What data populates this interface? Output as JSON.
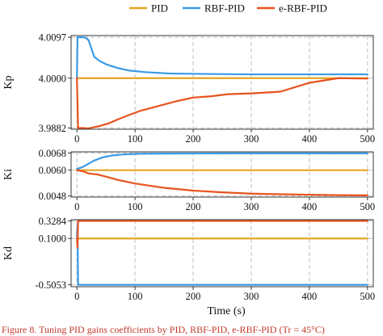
{
  "legend": [
    {
      "name": "PID",
      "color": "#E5A523"
    },
    {
      "name": "RBF-PID",
      "color": "#3A9BE8"
    },
    {
      "name": "e-RBF-PID",
      "color": "#E8531E"
    }
  ],
  "xlabel": "Time (s)",
  "caption_fragment": "Figure 8. Tuning PID gains coefficients by PID, RBF-PID, e-RBF-PID (Tr = 45°C)",
  "chart_data": [
    {
      "type": "line",
      "ylabel": "Kp",
      "xlim": [
        -10,
        510
      ],
      "xticks": [
        0,
        100,
        200,
        300,
        400,
        500
      ],
      "ylim": [
        3.9879,
        4.0101
      ],
      "yticks": [
        "4.0097",
        "4.0000",
        "3.9882"
      ],
      "grid": true,
      "series": [
        {
          "name": "PID",
          "color": "#E5A523",
          "points": [
            [
              0,
              4.0
            ],
            [
              500,
              4.0
            ]
          ]
        },
        {
          "name": "RBF-PID",
          "color": "#3A9BE8",
          "points": [
            [
              0,
              4.0
            ],
            [
              1,
              4.0097
            ],
            [
              10,
              4.0097
            ],
            [
              15,
              4.0096
            ],
            [
              20,
              4.009
            ],
            [
              25,
              4.007
            ],
            [
              30,
              4.005
            ],
            [
              40,
              4.004
            ],
            [
              50,
              4.0033
            ],
            [
              70,
              4.0024
            ],
            [
              90,
              4.0018
            ],
            [
              120,
              4.0014
            ],
            [
              160,
              4.0011
            ],
            [
              220,
              4.001
            ],
            [
              300,
              4.0009
            ],
            [
              400,
              4.0009
            ],
            [
              500,
              4.0009
            ]
          ]
        },
        {
          "name": "e-RBF-PID",
          "color": "#E8531E",
          "points": [
            [
              0,
              4.0
            ],
            [
              2,
              3.9882
            ],
            [
              10,
              3.9882
            ],
            [
              20,
              3.9881
            ],
            [
              30,
              3.9884
            ],
            [
              40,
              3.9887
            ],
            [
              55,
              3.9893
            ],
            [
              70,
              3.9902
            ],
            [
              90,
              3.9913
            ],
            [
              110,
              3.9923
            ],
            [
              140,
              3.9934
            ],
            [
              170,
              3.9945
            ],
            [
              200,
              3.9954
            ],
            [
              230,
              3.9957
            ],
            [
              260,
              3.9962
            ],
            [
              300,
              3.9964
            ],
            [
              350,
              3.9968
            ],
            [
              400,
              3.9989
            ],
            [
              450,
              4.0
            ],
            [
              500,
              3.9999
            ]
          ]
        }
      ]
    },
    {
      "type": "line",
      "ylabel": "Ki",
      "xlim": [
        -10,
        510
      ],
      "xticks": [
        0,
        100,
        200,
        300,
        400,
        500
      ],
      "ylim": [
        0.00475,
        0.00685
      ],
      "yticks": [
        "0.0068",
        "0.0060",
        "0.0048"
      ],
      "grid": true,
      "series": [
        {
          "name": "PID",
          "color": "#E5A523",
          "points": [
            [
              0,
              0.006
            ],
            [
              500,
              0.006
            ]
          ]
        },
        {
          "name": "RBF-PID",
          "color": "#3A9BE8",
          "points": [
            [
              0,
              0.00605
            ],
            [
              10,
              0.00615
            ],
            [
              20,
              0.0063
            ],
            [
              30,
              0.00645
            ],
            [
              45,
              0.0066
            ],
            [
              60,
              0.00668
            ],
            [
              80,
              0.00673
            ],
            [
              110,
              0.00676
            ],
            [
              150,
              0.00677
            ],
            [
              250,
              0.00678
            ],
            [
              350,
              0.00678
            ],
            [
              500,
              0.00678
            ]
          ]
        },
        {
          "name": "e-RBF-PID",
          "color": "#E8531E",
          "points": [
            [
              0,
              0.006
            ],
            [
              10,
              0.00595
            ],
            [
              20,
              0.00585
            ],
            [
              35,
              0.0058
            ],
            [
              50,
              0.0057
            ],
            [
              70,
              0.00555
            ],
            [
              100,
              0.00538
            ],
            [
              150,
              0.00518
            ],
            [
              200,
              0.00505
            ],
            [
              250,
              0.00497
            ],
            [
              300,
              0.00491
            ],
            [
              350,
              0.00488
            ],
            [
              400,
              0.00486
            ],
            [
              450,
              0.00484
            ],
            [
              500,
              0.00483
            ]
          ]
        }
      ]
    },
    {
      "type": "line",
      "ylabel": "Kd",
      "xlim": [
        -10,
        510
      ],
      "xticks": [
        0,
        100,
        200,
        300,
        400,
        500
      ],
      "ylim": [
        -0.53,
        0.345
      ],
      "yticks": [
        "0.3284",
        "0.1000",
        "-0.5053"
      ],
      "grid": true,
      "series": [
        {
          "name": "PID",
          "color": "#E5A523",
          "points": [
            [
              0,
              0.1
            ],
            [
              500,
              0.1
            ]
          ]
        },
        {
          "name": "RBF-PID",
          "color": "#3A9BE8",
          "points": [
            [
              0,
              0.1
            ],
            [
              1,
              0.28
            ],
            [
              2,
              -0.5053
            ],
            [
              500,
              -0.5053
            ]
          ]
        },
        {
          "name": "e-RBF-PID",
          "color": "#E8531E",
          "points": [
            [
              0,
              0.1
            ],
            [
              1,
              -0.02
            ],
            [
              2,
              0.3284
            ],
            [
              500,
              0.3284
            ]
          ]
        }
      ]
    }
  ]
}
